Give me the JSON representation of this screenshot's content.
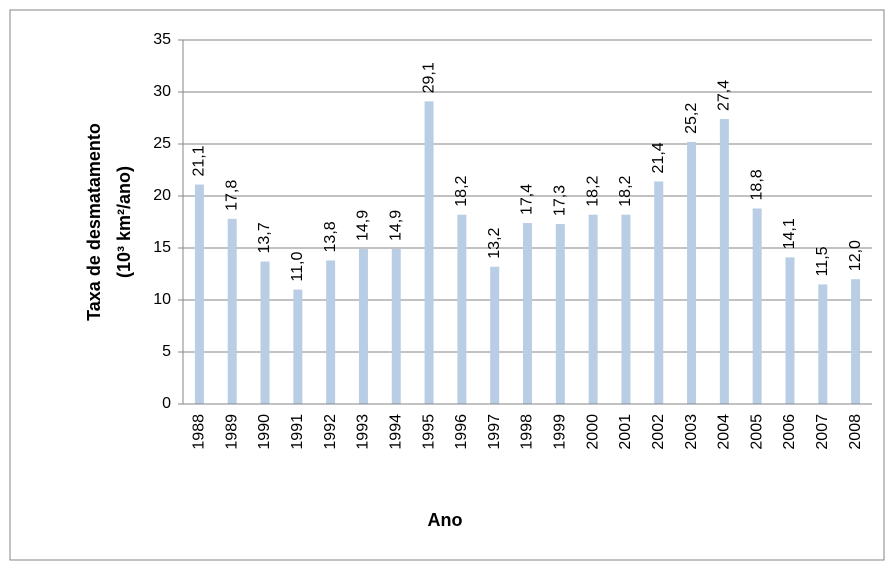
{
  "chart_data": {
    "type": "bar",
    "x_label": "Ano",
    "y_label": [
      "Taxa de desmatamento",
      "(10³ km²/ano)"
    ],
    "categories": [
      "1988",
      "1989",
      "1990",
      "1991",
      "1992",
      "1993",
      "1994",
      "1995",
      "1996",
      "1997",
      "1998",
      "1999",
      "2000",
      "2001",
      "2002",
      "2003",
      "2004",
      "2005",
      "2006",
      "2007",
      "2008"
    ],
    "values": [
      21.1,
      17.8,
      13.7,
      11.0,
      13.8,
      14.9,
      14.9,
      29.1,
      18.2,
      13.2,
      17.4,
      17.3,
      18.2,
      18.2,
      21.4,
      25.2,
      27.4,
      18.8,
      14.1,
      11.5,
      12.0
    ],
    "value_labels": [
      "21,1",
      "17,8",
      "13,7",
      "11,0",
      "13,8",
      "14,9",
      "14,9",
      "29,1",
      "18,2",
      "13,2",
      "17,4",
      "17,3",
      "18,2",
      "18,2",
      "21,4",
      "25,2",
      "27,4",
      "18,8",
      "14,1",
      "11,5",
      "12,0"
    ],
    "color": "#b9cde5",
    "ylim": [
      0,
      35
    ],
    "yticks": [
      0,
      5,
      10,
      15,
      20,
      25,
      30,
      35
    ],
    "grid": true
  }
}
